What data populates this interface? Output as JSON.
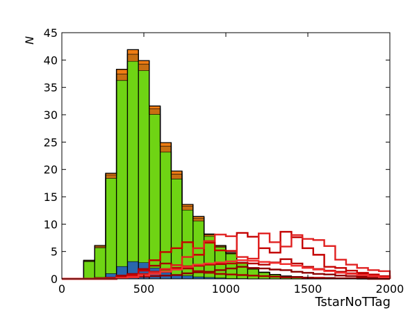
{
  "chart_data": {
    "type": "histogram",
    "title": "",
    "xlabel": "TstarNoTTag",
    "ylabel": "N",
    "xlim": [
      0,
      2000
    ],
    "ylim": [
      0,
      45
    ],
    "xticks": [
      "0",
      "500",
      "1000",
      "1500",
      "2000"
    ],
    "yticks": [
      "0",
      "5",
      "10",
      "15",
      "20",
      "25",
      "30",
      "35",
      "40",
      "45"
    ],
    "bin_edges": [
      0,
      67,
      133,
      200,
      267,
      333,
      400,
      467,
      533,
      600,
      667,
      733,
      800,
      867,
      933,
      1000,
      1067,
      1133,
      1200,
      1267,
      1333,
      1400,
      1467,
      1533,
      1600,
      1667,
      1733,
      1800,
      1867,
      1933,
      2000
    ],
    "stacked_series": [
      {
        "name": "",
        "color": "#2a67ae",
        "values": [
          0,
          0,
          0.2,
          0.3,
          1.0,
          2.3,
          3.2,
          3.0,
          2.0,
          1.2,
          0.8,
          0.6,
          0.4,
          0.3,
          0.2,
          0.1,
          0.1,
          0,
          0,
          0,
          0,
          0,
          0,
          0,
          0,
          0,
          0,
          0,
          0,
          0
        ]
      },
      {
        "name": "",
        "color": "#6fd414",
        "values": [
          0,
          0,
          3.0,
          5.4,
          17.4,
          34.0,
          36.6,
          35.1,
          28.1,
          22.0,
          17.5,
          12.0,
          10.2,
          7.5,
          5.6,
          4.5,
          2.8,
          1.8,
          1.2,
          0.8,
          0.5,
          0.4,
          0.3,
          0.2,
          0.2,
          0.1,
          0.1,
          0,
          0,
          0
        ]
      },
      {
        "name": "",
        "color": "#c86f12",
        "values": [
          0,
          0,
          0.1,
          0.2,
          0.6,
          1.2,
          1.3,
          1.2,
          1.0,
          1.1,
          0.9,
          0.7,
          0.5,
          0.3,
          0.2,
          0.1,
          0.1,
          0.1,
          0,
          0,
          0,
          0,
          0,
          0,
          0,
          0,
          0,
          0,
          0,
          0
        ]
      },
      {
        "name": "",
        "color": "#ef7c13",
        "values": [
          0,
          0,
          0.1,
          0.2,
          0.3,
          0.8,
          0.8,
          0.6,
          0.5,
          0.6,
          0.5,
          0.3,
          0.3,
          0.1,
          0.1,
          0.1,
          0,
          0,
          0,
          0,
          0,
          0,
          0,
          0,
          0,
          0,
          0,
          0,
          0,
          0
        ]
      }
    ],
    "step_series": [
      {
        "name": "",
        "color": "#8b0000",
        "values": [
          0,
          0,
          0,
          0,
          0,
          0.2,
          0.3,
          0.4,
          0.5,
          0.6,
          0.7,
          1.0,
          1.2,
          1.3,
          1.6,
          1.9,
          2.2,
          2.0,
          1.9,
          1.7,
          1.6,
          1.3,
          1.1,
          0.9,
          0.8,
          0.6,
          0.5,
          0.4,
          0.3,
          0.2
        ]
      },
      {
        "name": "",
        "color": "#a30000",
        "values": [
          0,
          0,
          0,
          0.1,
          0.2,
          0.6,
          0.9,
          1.8,
          2.4,
          2.8,
          2.5,
          1.9,
          1.4,
          1.1,
          0.9,
          0.8,
          0.7,
          0.6,
          0.5,
          0.4,
          0.3,
          0.3,
          0.2,
          0.2,
          0.1,
          0.1,
          0.1,
          0.1,
          0,
          0
        ]
      },
      {
        "name": "",
        "color": "#b50000",
        "values": [
          0,
          0,
          0,
          0,
          0,
          0.2,
          0.5,
          0.9,
          1.3,
          1.7,
          2.0,
          2.3,
          2.4,
          2.6,
          2.7,
          2.8,
          2.9,
          2.8,
          2.6,
          3.0,
          3.6,
          2.8,
          2.2,
          1.8,
          1.5,
          1.3,
          1.0,
          0.8,
          0.6,
          0.4
        ]
      },
      {
        "name": "",
        "color": "#c40000",
        "values": [
          0,
          0,
          0,
          0,
          0,
          0.3,
          0.7,
          1.5,
          3.4,
          4.9,
          5.6,
          6.7,
          4.4,
          6.6,
          5.2,
          5.1,
          8.4,
          7.7,
          5.6,
          4.8,
          8.6,
          7.6,
          5.6,
          4.4,
          2.2,
          2.0,
          1.5,
          1.1,
          0.8,
          0.5
        ]
      },
      {
        "name": "",
        "color": "#e02020",
        "values": [
          0,
          0,
          0,
          0,
          0,
          0.2,
          0.4,
          0.8,
          1.2,
          1.8,
          2.5,
          4.0,
          5.6,
          6.9,
          8.1,
          7.8,
          4.0,
          3.7,
          8.3,
          6.7,
          5.9,
          8.0,
          7.3,
          7.1,
          6.0,
          3.5,
          2.6,
          2.0,
          1.6,
          1.4
        ]
      },
      {
        "name": "",
        "color": "#f23030",
        "values": [
          0,
          0,
          0,
          0,
          0,
          0.1,
          0.3,
          0.6,
          0.9,
          1.3,
          1.7,
          2.2,
          2.6,
          2.8,
          3.0,
          3.2,
          3.4,
          3.3,
          3.1,
          2.9,
          2.7,
          2.4,
          2.0,
          1.7,
          1.4,
          1.1,
          0.9,
          0.7,
          0.5,
          0.3
        ]
      }
    ],
    "grid": false,
    "legend": "none"
  }
}
